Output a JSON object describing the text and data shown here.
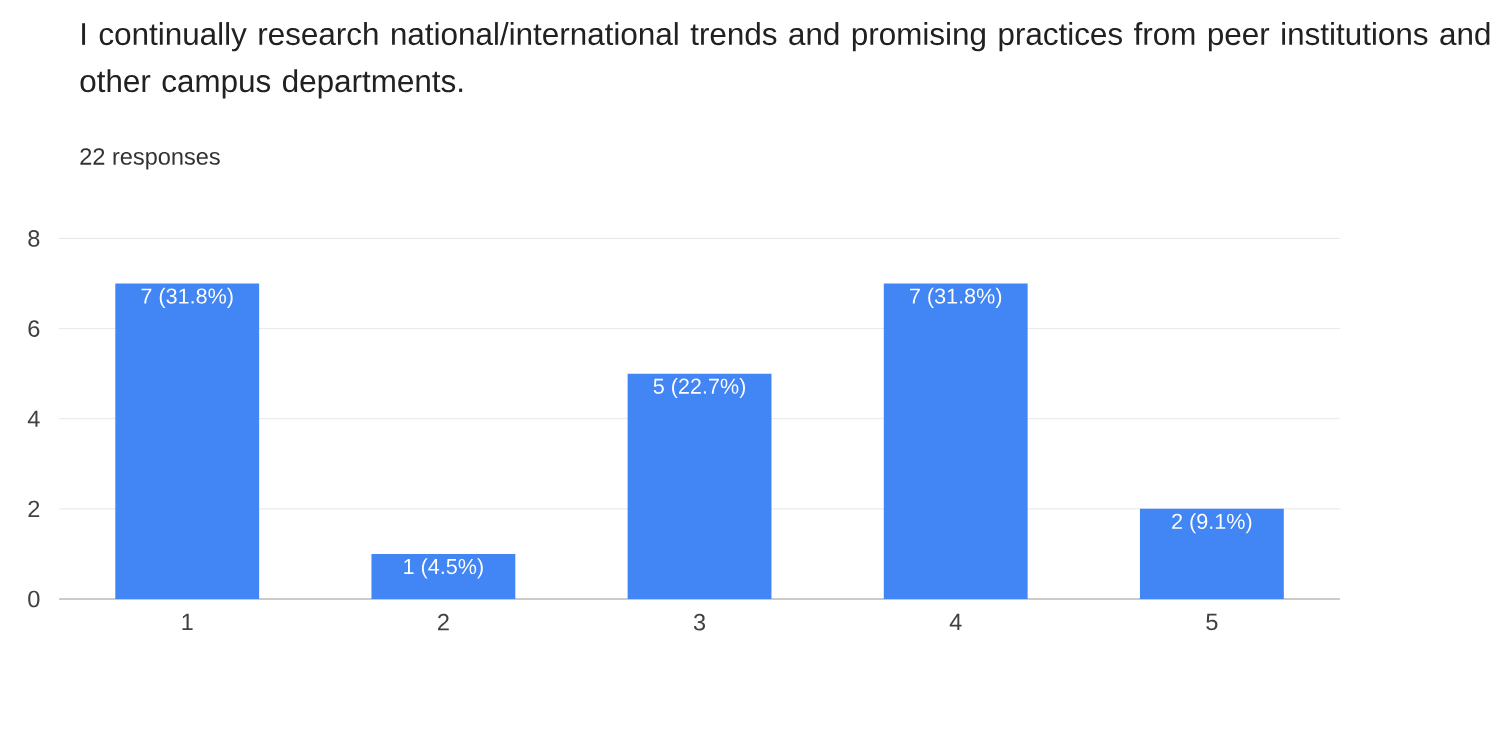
{
  "chart_data": {
    "type": "bar",
    "title": "I continually research national/international trends and promising practices from peer institutions and other campus departments.",
    "subtitle": "22 responses",
    "categories": [
      "1",
      "2",
      "3",
      "4",
      "5"
    ],
    "values": [
      7,
      1,
      5,
      7,
      2
    ],
    "value_labels": [
      "7 (31.8%)",
      "1 (4.5%)",
      "5 (22.7%)",
      "7 (31.8%)",
      "2 (9.1%)"
    ],
    "color": "#4285f4",
    "ylim": [
      0,
      8
    ],
    "yticks": [
      0,
      2,
      4,
      6,
      8
    ],
    "grid": "y"
  }
}
